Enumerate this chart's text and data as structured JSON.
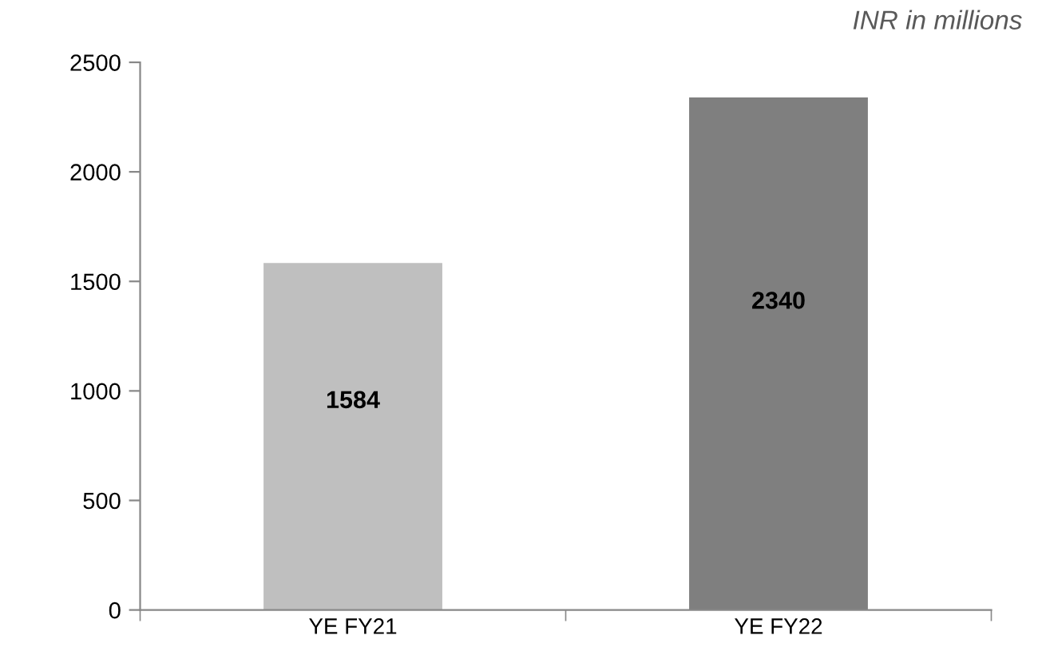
{
  "chart_data": {
    "type": "bar",
    "categories": [
      "YE FY21",
      "YE FY22"
    ],
    "series": [
      {
        "colors": [
          "#bfbfbf",
          "#7f7f7f"
        ],
        "values": [
          1584,
          2340
        ]
      }
    ],
    "data_labels": true,
    "ylim": [
      0,
      2500
    ],
    "yticks": [
      0,
      500,
      1000,
      1500,
      2000,
      2500
    ],
    "grid": false,
    "annotations": [
      "INR in millions"
    ]
  }
}
